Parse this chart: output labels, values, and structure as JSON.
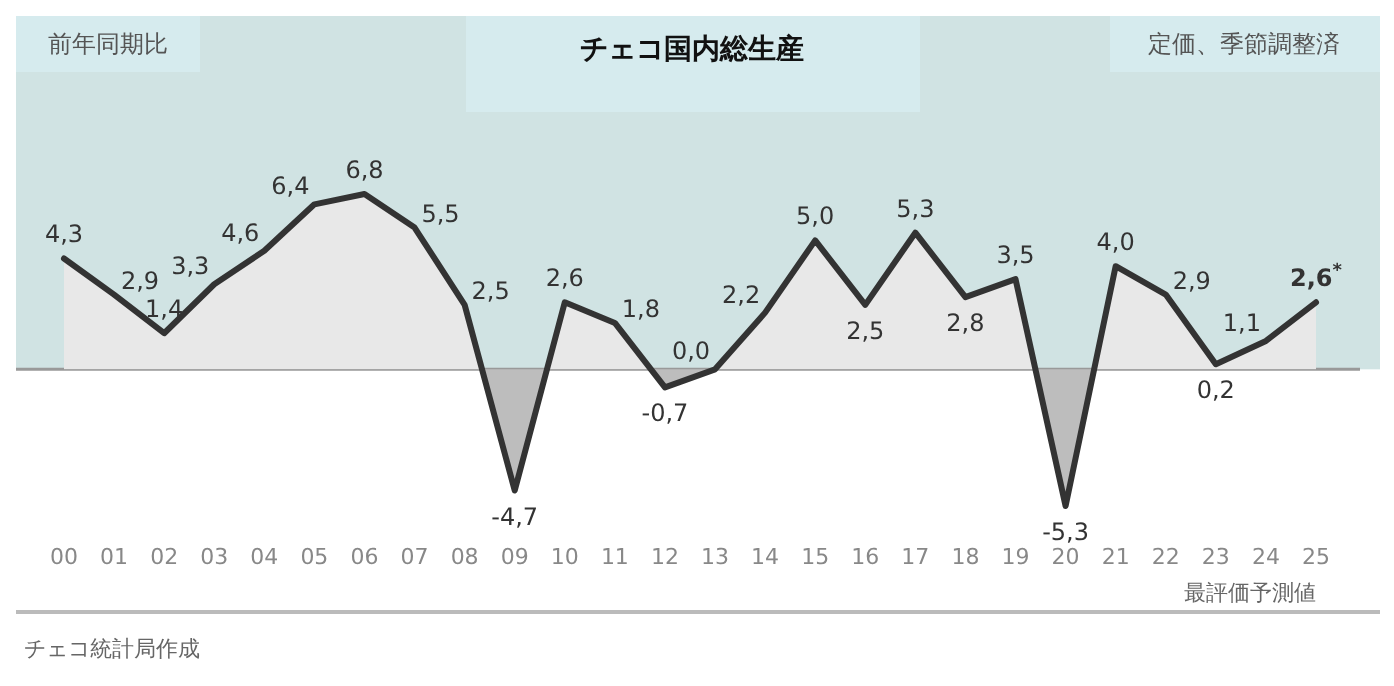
{
  "chart_data": {
    "type": "area",
    "title": "チェコ国内総生産",
    "subtitle": "定価、季節調整済",
    "categories": [
      "00",
      "01",
      "02",
      "03",
      "04",
      "05",
      "06",
      "07",
      "08",
      "09",
      "10",
      "11",
      "12",
      "13",
      "14",
      "15",
      "16",
      "17",
      "18",
      "19",
      "20",
      "21",
      "22",
      "23",
      "24",
      "25"
    ],
    "series": [
      {
        "color": "#333333",
        "values": [
          4.3,
          2.9,
          1.4,
          3.3,
          4.6,
          6.4,
          6.8,
          5.5,
          2.5,
          -4.7,
          2.6,
          1.8,
          -0.7,
          0.0,
          2.2,
          5.0,
          2.5,
          5.3,
          2.8,
          3.5,
          -5.3,
          4.0,
          2.9,
          0.2,
          1.1,
          2.6
        ],
        "value_labels": [
          "4,3",
          "2,9",
          "1,4",
          "3,3",
          "4,6",
          "6,4",
          "6,8",
          "5,5",
          "2,5",
          "-4,7",
          "2,6",
          "1,8",
          "-0,7",
          "0,0",
          "2,2",
          "5,0",
          "2,5",
          "5,3",
          "2,8",
          "3,5",
          "-5,3",
          "4,0",
          "2,9",
          "0,2",
          "1,1",
          "2,6$^{*}$"
        ]
      }
    ],
    "annotations": [
      "前年同期比",
      "最評価予測値",
      "チェコ統計局作成"
    ]
  }
}
